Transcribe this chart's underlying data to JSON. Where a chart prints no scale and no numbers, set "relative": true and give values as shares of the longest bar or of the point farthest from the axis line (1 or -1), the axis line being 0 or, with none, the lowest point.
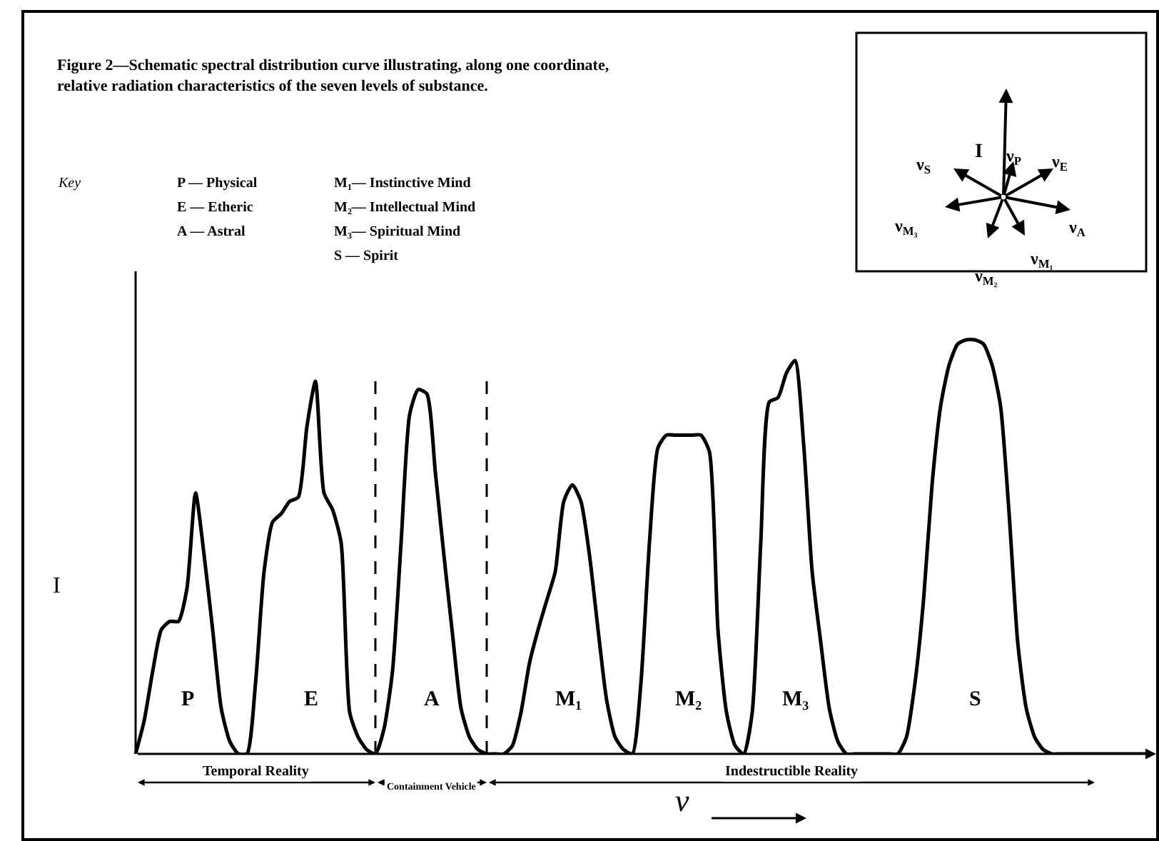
{
  "chart_data": {
    "type": "line",
    "relative": true,
    "title": "Figure 2—Schematic spectral distribution curve illustrating, along one coordinate, relative radiation characteristics of the seven levels of substance.",
    "xlabel": "ν",
    "ylabel": "I",
    "categories": [
      null,
      null,
      null,
      null,
      null,
      null,
      null,
      null,
      null,
      null,
      null,
      null,
      null,
      null,
      null,
      null,
      null,
      null,
      null,
      null,
      null,
      null,
      null,
      null,
      null,
      null,
      null,
      null,
      null,
      null,
      null,
      null,
      null,
      null,
      null,
      null,
      null,
      null,
      null,
      null,
      null,
      null,
      null,
      null,
      null,
      null,
      null,
      null,
      null,
      null,
      null,
      null,
      null,
      null,
      null,
      null,
      null,
      null,
      null,
      null,
      null,
      null,
      null,
      null,
      null,
      null,
      null,
      null,
      null,
      null,
      null,
      null,
      null,
      null,
      null,
      null,
      null,
      null,
      null,
      null,
      null,
      null,
      null,
      null,
      null,
      null,
      null,
      null,
      null,
      null,
      null,
      null,
      null,
      null,
      null,
      null,
      null,
      null,
      null,
      null,
      null,
      null,
      null,
      null,
      null,
      null,
      null,
      null,
      null,
      null,
      null,
      null,
      null,
      null,
      null,
      null,
      null,
      null,
      null
    ],
    "series": [
      {
        "color": "#000000",
        "values": [
          0,
          0.08,
          0.2,
          0.3,
          0.32,
          0.32,
          0.4,
          0.63,
          0.48,
          0.3,
          0.11,
          0.03,
          0,
          0,
          0.17,
          0.44,
          0.56,
          0.58,
          0.61,
          0.62,
          0.79,
          0.9,
          0.63,
          0.59,
          0.51,
          0.1,
          0.04,
          0.01,
          0,
          0.06,
          0.2,
          0.51,
          0.82,
          0.88,
          0.87,
          0.68,
          0.48,
          0.29,
          0.11,
          0.04,
          0.01,
          0,
          0,
          0,
          0.02,
          0.1,
          0.22,
          0.3,
          0.37,
          0.44,
          0.61,
          0.65,
          0.61,
          0.48,
          0.3,
          0.13,
          0.04,
          0.01,
          0,
          0.17,
          0.51,
          0.74,
          0.77,
          0.77,
          0.77,
          0.77,
          0.77,
          0.73,
          0.3,
          0.1,
          0.02,
          0,
          0.1,
          0.51,
          0.85,
          0.86,
          0.92,
          0.95,
          0.75,
          0.44,
          0.27,
          0.11,
          0.03,
          0,
          0,
          0,
          0,
          0,
          0,
          0,
          0.04,
          0.17,
          0.37,
          0.65,
          0.84,
          0.94,
          0.99,
          1,
          1,
          0.99,
          0.94,
          0.84,
          0.58,
          0.27,
          0.11,
          0.04,
          0.01,
          0,
          0,
          0,
          0,
          0,
          0,
          0,
          0,
          0,
          0,
          0,
          0
        ]
      }
    ],
    "line_style": "solid",
    "marker": "none",
    "legend": false,
    "tick_labels": false,
    "annotations": [
      "P",
      "E",
      "A",
      "M₁",
      "M₂",
      "M₃",
      "S",
      "Key",
      "P — Physical",
      "E — Etheric",
      "A — Astral",
      "M₁— Instinctive Mind",
      "M₂— Intellectual Mind",
      "M₃— Spiritual Mind",
      "S — Spirit",
      "I",
      "ν$_{P}$",
      "ν$_{E}$",
      "ν$_{A}$",
      "ν$_{M₁}$",
      "ν$_{M₂}$",
      "ν$_{M₃}$",
      "ν$_{S}$",
      "Temporal Reality",
      "Containment Vehicle",
      "Indestructible Reality"
    ]
  }
}
